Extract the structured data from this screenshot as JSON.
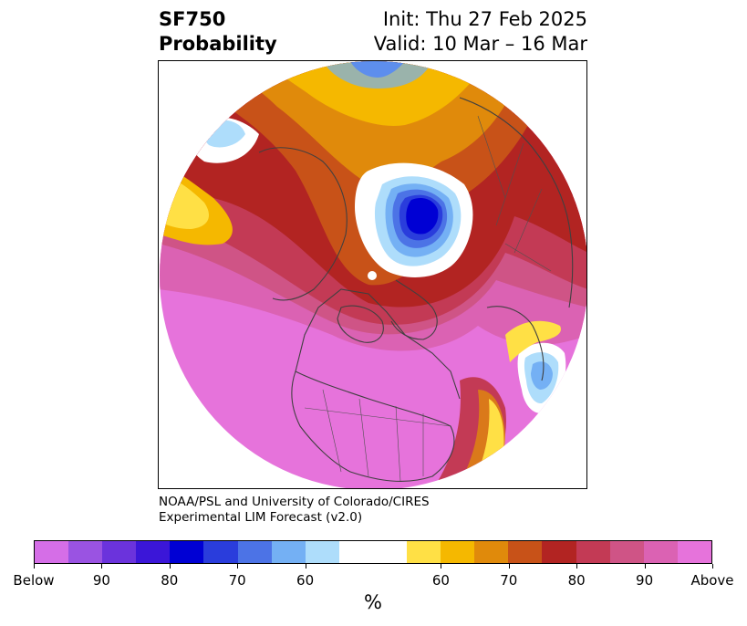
{
  "title": {
    "variable": "SF750",
    "subtitle": "Probability",
    "init": "Init: Thu 27 Feb 2025",
    "valid": "Valid: 10 Mar – 16 Mar"
  },
  "credit": {
    "line1": "NOAA/PSL and University of Colorado/CIRES",
    "line2": "Experimental LIM Forecast (v2.0)"
  },
  "colorbar": {
    "below_colors": [
      "#d56ee7",
      "#9a53e2",
      "#6b33dc",
      "#3b16d8",
      "#0000d4",
      "#2a3ddc",
      "#4c73e6",
      "#74b0f4",
      "#aeddfb"
    ],
    "above_colors": [
      "#ffe045",
      "#f5b800",
      "#e08a0b",
      "#c85218",
      "#b22422",
      "#c33a55",
      "#cf5486",
      "#db62b3",
      "#e673db"
    ],
    "tick_labels": [
      "Below",
      "90",
      "80",
      "70",
      "60",
      "60",
      "70",
      "80",
      "90",
      "Above"
    ],
    "units": "%"
  },
  "map": {
    "projection": "north-polar-stereographic",
    "colors": {
      "land_outline": "#404040",
      "dominant_field": "#e673db"
    }
  }
}
